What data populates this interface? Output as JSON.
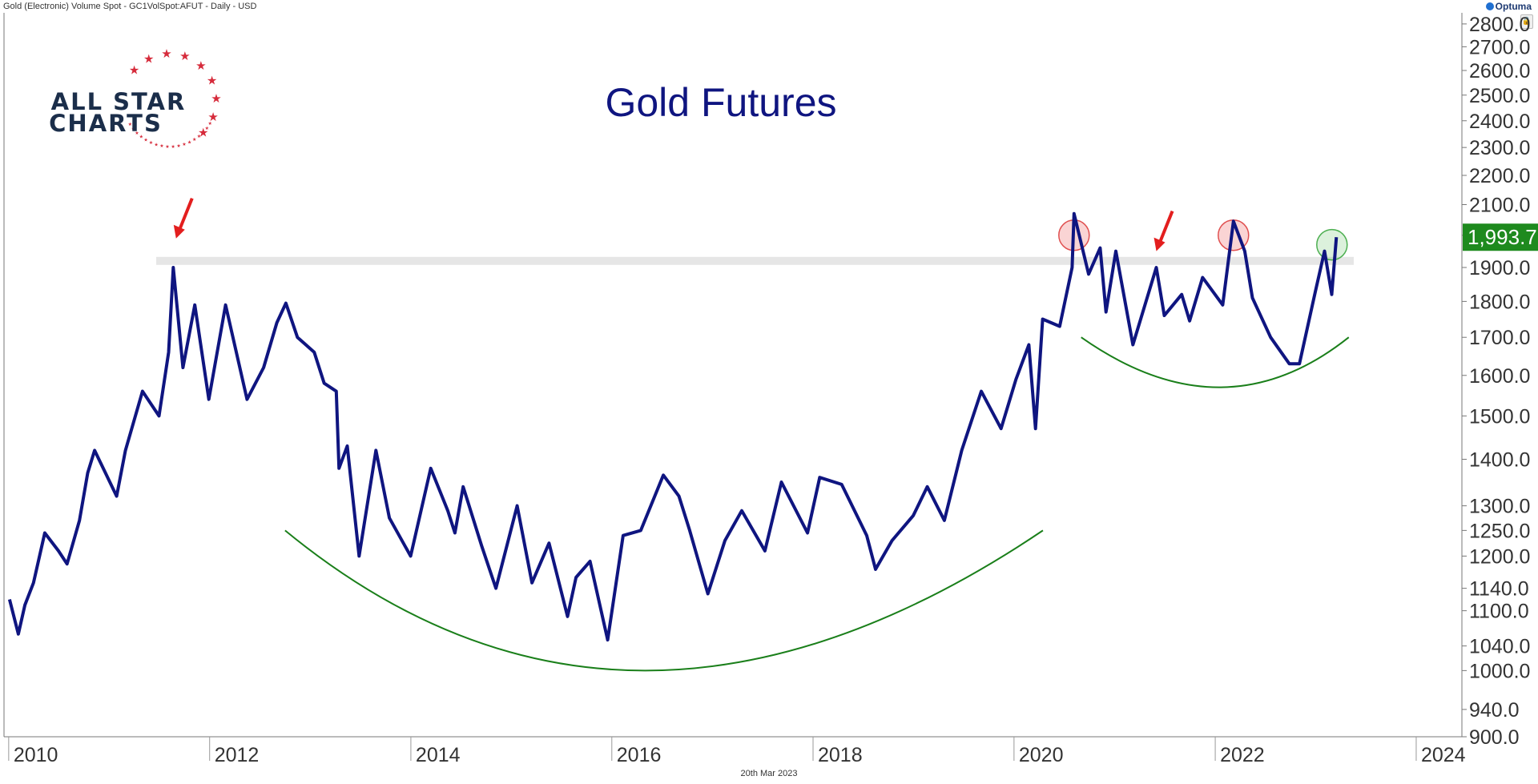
{
  "header": {
    "caption": "Gold (Electronic) Volume Spot - GC1VolSpot:AFUT - Daily - USD",
    "brand": "Optuma"
  },
  "logo": {
    "line1": "ALL STAR",
    "line2": "CHARTS"
  },
  "footer": {
    "date": "20th Mar 2023"
  },
  "colors": {
    "price_line": "#0f1580",
    "title": "#0f1580",
    "arc": "#1a7f1a",
    "arrow": "#e31e1e",
    "resistance": "#e6e6e6",
    "price_badge": "#1e8a1e",
    "logo_navy": "#1b2e4a",
    "logo_red": "#d62b3b"
  },
  "chart_data": {
    "type": "line",
    "title": "Gold Futures",
    "y_scale": "log",
    "ylim": [
      900,
      2850
    ],
    "xlim": [
      "2009-12-15",
      "2024-06-15"
    ],
    "x_tick_labels": [
      "2010",
      "2012",
      "2014",
      "2016",
      "2018",
      "2020",
      "2022",
      "2024"
    ],
    "y_tick_labels": [
      "900.0",
      "940.0",
      "1000.0",
      "1040.0",
      "1100.0",
      "1140.0",
      "1200.0",
      "1250.0",
      "1300.0",
      "1400.0",
      "1500.0",
      "1600.0",
      "1700.0",
      "1800.0",
      "1900.0",
      "2000.0",
      "2100.0",
      "2200.0",
      "2300.0",
      "2400.0",
      "2500.0",
      "2600.0",
      "2700.0",
      "2800.0"
    ],
    "last_value": "1,993.7",
    "series": [
      {
        "x": [
          "2010-01-04",
          "2010-02-05",
          "2010-03-01",
          "2010-04-01",
          "2010-05-12",
          "2010-07-01",
          "2010-08-01",
          "2010-09-15",
          "2010-10-15",
          "2010-11-09",
          "2011-01-28",
          "2011-03-01",
          "2011-05-02",
          "2011-07-01",
          "2011-08-05",
          "2011-08-22",
          "2011-09-26",
          "2011-11-08",
          "2011-12-29",
          "2012-02-28",
          "2012-05-16",
          "2012-07-15",
          "2012-09-01",
          "2012-10-04",
          "2012-11-15",
          "2013-01-15",
          "2013-02-20",
          "2013-04-05",
          "2013-04-15",
          "2013-05-15",
          "2013-06-27",
          "2013-08-27",
          "2013-10-15",
          "2013-12-31",
          "2014-03-14",
          "2014-05-15",
          "2014-06-10",
          "2014-07-10",
          "2014-09-15",
          "2014-11-06",
          "2015-01-22",
          "2015-03-17",
          "2015-05-18",
          "2015-07-24",
          "2015-08-24",
          "2015-10-14",
          "2015-12-17",
          "2016-02-11",
          "2016-04-15",
          "2016-07-06",
          "2016-09-01",
          "2016-10-10",
          "2016-12-15",
          "2017-02-15",
          "2017-04-17",
          "2017-07-10",
          "2017-09-08",
          "2017-12-12",
          "2018-01-25",
          "2018-04-15",
          "2018-07-15",
          "2018-08-16",
          "2018-10-15",
          "2018-12-31",
          "2019-02-20",
          "2019-04-23",
          "2019-06-25",
          "2019-09-04",
          "2019-11-15",
          "2020-01-08",
          "2020-02-24",
          "2020-03-19",
          "2020-04-14",
          "2020-06-15",
          "2020-07-30",
          "2020-08-06",
          "2020-09-28",
          "2020-11-09",
          "2020-11-30",
          "2021-01-05",
          "2021-03-08",
          "2021-06-01",
          "2021-06-30",
          "2021-09-01",
          "2021-09-30",
          "2021-11-16",
          "2022-01-28",
          "2022-03-08",
          "2022-04-18",
          "2022-05-16",
          "2022-07-21",
          "2022-09-27",
          "2022-11-03",
          "2022-12-31",
          "2023-02-02",
          "2023-02-28",
          "2023-03-17"
        ],
        "y": [
          1120,
          1060,
          1110,
          1150,
          1245,
          1210,
          1185,
          1270,
          1370,
          1420,
          1320,
          1420,
          1560,
          1500,
          1660,
          1900,
          1620,
          1790,
          1540,
          1790,
          1540,
          1620,
          1740,
          1795,
          1700,
          1660,
          1580,
          1560,
          1380,
          1430,
          1200,
          1420,
          1275,
          1200,
          1380,
          1290,
          1245,
          1340,
          1220,
          1140,
          1300,
          1150,
          1225,
          1090,
          1160,
          1190,
          1050,
          1240,
          1250,
          1365,
          1320,
          1250,
          1130,
          1230,
          1290,
          1210,
          1350,
          1245,
          1360,
          1345,
          1240,
          1175,
          1230,
          1280,
          1340,
          1270,
          1420,
          1560,
          1470,
          1590,
          1680,
          1470,
          1750,
          1730,
          1900,
          2070,
          1880,
          1960,
          1770,
          1950,
          1680,
          1900,
          1760,
          1820,
          1745,
          1870,
          1790,
          2045,
          1950,
          1810,
          1700,
          1630,
          1630,
          1830,
          1950,
          1820,
          1993.7
        ]
      }
    ],
    "resistance_level": 1920,
    "arc_support_1": {
      "x": [
        "2012-10-01",
        "2016-05-01",
        "2020-04-15"
      ],
      "y": [
        1250,
        1000,
        1250
      ]
    },
    "arc_support_2": {
      "x": [
        "2020-09-01",
        "2022-01-15",
        "2023-05-01"
      ],
      "y": [
        1700,
        1570,
        1700
      ]
    },
    "highlighted_peaks": [
      {
        "x": "2020-08-06",
        "y": 2000,
        "color": "red"
      },
      {
        "x": "2022-03-08",
        "y": 2000,
        "color": "red"
      },
      {
        "x": "2023-03-01",
        "y": 1970,
        "color": "green"
      }
    ],
    "arrows": [
      {
        "x": "2011-09-01",
        "y": 1990
      },
      {
        "x": "2021-06-01",
        "y": 1950
      }
    ]
  }
}
